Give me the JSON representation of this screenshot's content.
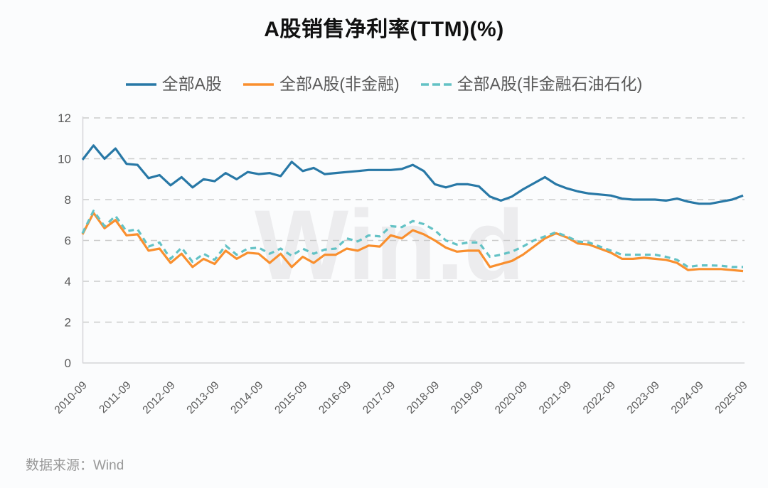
{
  "chart_data": {
    "type": "line",
    "title": "A股销售净利率(TTM)(%)",
    "source_note": "数据来源：Wind",
    "watermark": "Win.d",
    "ylim": [
      0,
      12
    ],
    "yticks": [
      0,
      2,
      4,
      6,
      8,
      10,
      12
    ],
    "grid": "horizontal-dashed",
    "legend_position": "top-center",
    "x_tick_labels": [
      "2010-09",
      "2011-09",
      "2012-09",
      "2013-09",
      "2014-09",
      "2015-09",
      "2016-09",
      "2017-09",
      "2018-09",
      "2019-09",
      "2020-09",
      "2021-09",
      "2022-09",
      "2023-09",
      "2024-09",
      "2025-09"
    ],
    "categories": [
      "2010-09",
      "2010-12",
      "2011-03",
      "2011-06",
      "2011-09",
      "2011-12",
      "2012-03",
      "2012-06",
      "2012-09",
      "2012-12",
      "2013-03",
      "2013-06",
      "2013-09",
      "2013-12",
      "2014-03",
      "2014-06",
      "2014-09",
      "2014-12",
      "2015-03",
      "2015-06",
      "2015-09",
      "2015-12",
      "2016-03",
      "2016-06",
      "2016-09",
      "2016-12",
      "2017-03",
      "2017-06",
      "2017-09",
      "2017-12",
      "2018-03",
      "2018-06",
      "2018-09",
      "2018-12",
      "2019-03",
      "2019-06",
      "2019-09",
      "2019-12",
      "2020-03",
      "2020-06",
      "2020-09",
      "2020-12",
      "2021-03",
      "2021-06",
      "2021-09",
      "2021-12",
      "2022-03",
      "2022-06",
      "2022-09",
      "2022-12",
      "2023-03",
      "2023-06",
      "2023-09",
      "2023-12",
      "2024-03",
      "2024-06",
      "2024-09",
      "2024-12",
      "2025-03",
      "2025-06",
      "2025-09"
    ],
    "series": [
      {
        "name": "全部A股",
        "color": "#2878a6",
        "style": "solid",
        "values": [
          9.95,
          10.65,
          10.0,
          10.5,
          9.75,
          9.7,
          9.05,
          9.2,
          8.7,
          9.1,
          8.6,
          9.0,
          8.9,
          9.3,
          9.0,
          9.35,
          9.25,
          9.3,
          9.15,
          9.85,
          9.4,
          9.55,
          9.25,
          9.3,
          9.35,
          9.4,
          9.45,
          9.45,
          9.45,
          9.5,
          9.7,
          9.4,
          8.75,
          8.6,
          8.75,
          8.75,
          8.65,
          8.15,
          7.95,
          8.15,
          8.5,
          8.8,
          9.1,
          8.75,
          8.55,
          8.4,
          8.3,
          8.25,
          8.2,
          8.05,
          8.0,
          8.0,
          8.0,
          7.95,
          8.05,
          7.9,
          7.8,
          7.8,
          7.9,
          8.0,
          8.2
        ]
      },
      {
        "name": "全部A股(非金融)",
        "color": "#f98f2e",
        "style": "solid",
        "values": [
          6.3,
          7.35,
          6.6,
          7.0,
          6.25,
          6.3,
          5.5,
          5.6,
          4.9,
          5.35,
          4.7,
          5.1,
          4.85,
          5.5,
          5.1,
          5.4,
          5.35,
          4.9,
          5.35,
          4.7,
          5.2,
          4.9,
          5.3,
          5.3,
          5.6,
          5.5,
          5.75,
          5.7,
          6.25,
          6.1,
          6.5,
          6.3,
          6.0,
          5.65,
          5.45,
          5.5,
          5.5,
          4.7,
          4.85,
          5.0,
          5.3,
          5.7,
          6.1,
          6.35,
          6.15,
          5.85,
          5.8,
          5.6,
          5.4,
          5.1,
          5.1,
          5.15,
          5.1,
          5.05,
          4.9,
          4.55,
          4.6,
          4.6,
          4.6,
          4.55,
          4.5
        ]
      },
      {
        "name": "全部A股(非金融石油石化)",
        "color": "#63c2c5",
        "style": "dashed",
        "values": [
          6.35,
          7.45,
          6.7,
          7.2,
          6.45,
          6.55,
          5.7,
          5.9,
          5.1,
          5.65,
          4.95,
          5.35,
          5.05,
          5.75,
          5.3,
          5.6,
          5.65,
          5.35,
          5.6,
          5.25,
          5.6,
          5.35,
          5.55,
          5.6,
          6.1,
          5.95,
          6.25,
          6.2,
          6.7,
          6.65,
          6.95,
          6.8,
          6.5,
          6.0,
          5.8,
          5.9,
          5.9,
          5.2,
          5.3,
          5.45,
          5.7,
          6.0,
          6.2,
          6.4,
          6.2,
          5.95,
          5.9,
          5.7,
          5.5,
          5.3,
          5.3,
          5.3,
          5.3,
          5.2,
          5.05,
          4.7,
          4.78,
          4.78,
          4.76,
          4.7,
          4.7
        ]
      }
    ]
  },
  "theme": {
    "grid_color": "#cbcbcb",
    "axis_color": "#d5d5d8",
    "tick_label_color": "#595959",
    "watermark_color": "#ececee"
  }
}
